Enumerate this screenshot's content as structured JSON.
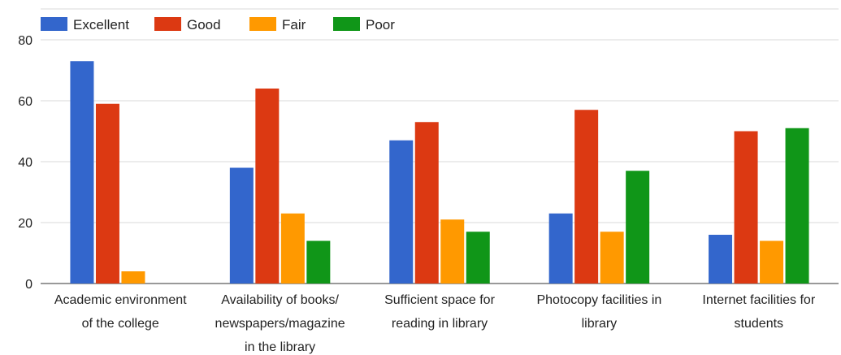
{
  "chart_data": {
    "type": "bar",
    "title": "",
    "xlabel": "",
    "ylabel": "",
    "ylim": [
      0,
      80
    ],
    "yticks": [
      0,
      20,
      40,
      60,
      80
    ],
    "grid": true,
    "legend_position": "top-left",
    "categories": [
      [
        "Academic environment",
        "of the college"
      ],
      [
        "Availability of books/",
        "newspapers/magazine",
        "in the library"
      ],
      [
        "Sufficient space for",
        "reading in library"
      ],
      [
        "Photocopy facilities in",
        "library"
      ],
      [
        "Internet facilities for",
        "students"
      ]
    ],
    "series": [
      {
        "name": "Excellent",
        "color": "#3366cc",
        "values": [
          73,
          38,
          47,
          23,
          16
        ]
      },
      {
        "name": "Good",
        "color": "#dc3912",
        "values": [
          59,
          64,
          53,
          57,
          50
        ]
      },
      {
        "name": "Fair",
        "color": "#ff9900",
        "values": [
          4,
          23,
          21,
          17,
          14
        ]
      },
      {
        "name": "Poor",
        "color": "#109618",
        "values": [
          0,
          14,
          17,
          37,
          51
        ]
      }
    ]
  }
}
